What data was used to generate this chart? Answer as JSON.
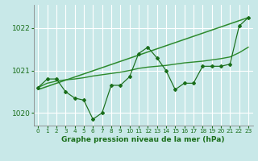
{
  "x": [
    0,
    1,
    2,
    3,
    4,
    5,
    6,
    7,
    8,
    9,
    10,
    11,
    12,
    13,
    14,
    15,
    16,
    17,
    18,
    19,
    20,
    21,
    22,
    23
  ],
  "y_main": [
    1020.6,
    1020.8,
    1020.8,
    1020.5,
    1020.35,
    1020.3,
    1019.85,
    1020.0,
    1020.65,
    1020.65,
    1020.85,
    1021.4,
    1021.55,
    1021.3,
    1021.0,
    1020.55,
    1020.7,
    1020.7,
    1021.1,
    1021.1,
    1021.1,
    1021.15,
    1022.05,
    1022.25
  ],
  "trend_x": [
    0,
    23
  ],
  "trend_y": [
    1020.55,
    1022.25
  ],
  "smooth_y": [
    1020.6,
    1020.7,
    1020.75,
    1020.78,
    1020.8,
    1020.83,
    1020.87,
    1020.9,
    1020.93,
    1020.96,
    1021.0,
    1021.05,
    1021.08,
    1021.1,
    1021.12,
    1021.15,
    1021.18,
    1021.2,
    1021.22,
    1021.25,
    1021.28,
    1021.32,
    1021.42,
    1021.55
  ],
  "bg_color": "#c8e8e8",
  "grid_color": "#ffffff",
  "line_color": "#1a6e1a",
  "trend_color": "#2d8a2d",
  "xlabel": "Graphe pression niveau de la mer (hPa)",
  "ylim": [
    1019.7,
    1022.55
  ],
  "xlim": [
    -0.5,
    23.5
  ],
  "yticks": [
    1020,
    1021,
    1022
  ],
  "xticks": [
    0,
    1,
    2,
    3,
    4,
    5,
    6,
    7,
    8,
    9,
    10,
    11,
    12,
    13,
    14,
    15,
    16,
    17,
    18,
    19,
    20,
    21,
    22,
    23
  ],
  "xlabel_fontsize": 6.5,
  "ytick_fontsize": 6.5,
  "xtick_fontsize": 5.2
}
